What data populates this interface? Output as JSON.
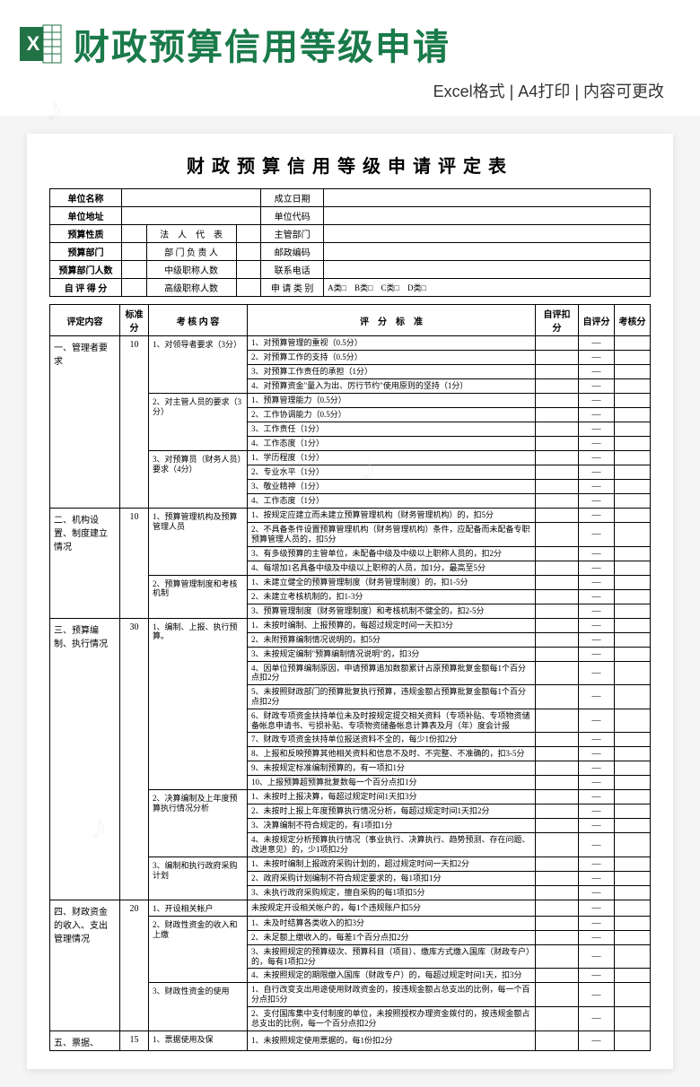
{
  "banner": {
    "title": "财政预算信用等级申请",
    "subtitle": "Excel格式 | A4打印 | 内容可更改",
    "icon_color": "#217346",
    "icon_label": "X"
  },
  "doc": {
    "title": "财政预算信用等级申请评定表"
  },
  "info": {
    "rows": [
      {
        "l1": "单位名称",
        "l2": "",
        "l3": "",
        "r1": "成立日期",
        "r2": ""
      },
      {
        "l1": "单位地址",
        "l2": "",
        "l3": "",
        "r1": "单位代码",
        "r2": ""
      },
      {
        "l1": "预算性质",
        "l2": "",
        "l3": "法　人　代　表",
        "r1": "主管部门",
        "r2": ""
      },
      {
        "l1": "预算部门",
        "l2": "",
        "l3": "部 门 负 责 人",
        "r1": "邮政编码",
        "r2": ""
      },
      {
        "l1": "预算部门人数",
        "l2": "",
        "l3": "中级职称人数",
        "r1": "联系电话",
        "r2": ""
      },
      {
        "l1": "自 评 得 分",
        "l2": "",
        "l3": "高级职称人数",
        "r1": "申 请 类 别",
        "r2": "A类□　B类□　C类□　D类□"
      }
    ]
  },
  "headers": {
    "category": "评定内容",
    "score": "标准分",
    "criteria": "考 核 内 容",
    "standard": "评　分　标　准",
    "deduct": "自评扣分",
    "self": "自评分",
    "check": "考核分"
  },
  "sections": [
    {
      "category": "一、管理者要求",
      "score": "10",
      "groups": [
        {
          "criteria": "1、对领导者要求（3分）",
          "items": [
            "1、对预算管理的重视（0.5分）",
            "2、对预算工作的支持（0.5分）",
            "3、对预算工作责任的承担（1分）",
            "4、对预算资金\"量入为出、厉行节约\"使用原则的坚持（1分）"
          ]
        },
        {
          "criteria": "2、对主管人员的要求（3分）",
          "items": [
            "1、预算管理能力（0.5分）",
            "2、工作协调能力（0.5分）",
            "3、工作责任（1分）",
            "4、工作态度（1分）"
          ]
        },
        {
          "criteria": "3、对预算员（财务人员）要求（4分）",
          "items": [
            "1、学历程度（1分）",
            "2、专业水平（1分）",
            "3、敬业精神（1分）",
            "4、工作态度（1分）"
          ]
        }
      ]
    },
    {
      "category": "二、机构设置、制度建立情况",
      "score": "10",
      "groups": [
        {
          "criteria": "1、预算管理机构及预算管理人员",
          "items": [
            "1、按规定应建立而未建立预算管理机构（财务管理机构）的，扣5分",
            "2、不具备条件设置预算管理机构（财务管理机构）条件，应配备而未配备专职预算管理人员的，扣5分",
            "3、有多级预算的主管单位，未配备中级及中级以上职称人员的，扣2分",
            "4、每增加1名具备中级及中级以上职称的人员，加1分，最高至5分"
          ]
        },
        {
          "criteria": "2、预算管理制度和考核机制",
          "items": [
            "1、未建立健全的预算管理制度（财务管理制度）的，扣1-5分",
            "2、未建立考核机制的，扣1-3分",
            "3、预算管理制度（财务管理制度）和考核机制不健全的，扣2-5分"
          ]
        }
      ]
    },
    {
      "category": "三、预算编制、执行情况",
      "score": "30",
      "groups": [
        {
          "criteria": "1、编制、上报、执行预算。",
          "items": [
            "1、未按时编制、上报预算的，每超过规定时间一天扣3分",
            "2、未附预算编制情况说明的，扣5分",
            "3、未按规定编制\"预算编制情况说明\"的，扣3分",
            "4、因单位预算编制原因，申请预算追加数额累计占原预算批复金额每1个百分点扣2分",
            "5、未按照财政部门的预算批复执行预算，违规金额占预算批复金额每1个百分点扣2分",
            "6、财政专项资金扶持单位未及时按规定提交相关资料（专项补贴、专项物资储备帐息申请书、亏损补贴、专项物资储备帐息计算表及月（年）度会计报",
            "7、财政专项资金扶持单位报送资料不全的，每少1份扣2分",
            "8、上报和反映预算其他相关资料和信息不及时、不完整、不准确的，扣3-5分",
            "9、未按规定标准编制预算的，有一项扣1分",
            "10、上报预算超预算批复数每一个百分点扣1分"
          ]
        },
        {
          "criteria": "2、决算编制及上年度预算执行情况分析",
          "items": [
            "1、未按时上报决算，每超过规定时间1天扣3分",
            "2、未按时上报上年度预算执行情况分析，每超过规定时间1天扣2分",
            "3、决算编制不符合规定的，有1项扣1分",
            "4、未按规定分析预算执行情况（事业执行、决算执行、趋势预测、存在问题、改进意见）的，少1项扣2分"
          ]
        },
        {
          "criteria": "3、编制和执行政府采购计划",
          "items": [
            "1、未按时编制上报政府采购计划的，超过规定时间一天扣2分",
            "2、政府采购计划编制不符合规定要求的，每1项扣1分",
            "3、未执行政府采购规定，擅自采购的每1项扣5分"
          ]
        }
      ]
    },
    {
      "category": "四、财政资金的收入、支出管理情况",
      "score": "20",
      "groups": [
        {
          "criteria": "1、开设相关帐户",
          "items": [
            "未按规定开设相关帐户的，每1个违规账户扣5分"
          ]
        },
        {
          "criteria": "2、财政性资金的收入和上缴",
          "items": [
            "1、未及时结算各类收入的扣3分",
            "2、未足额上缴收入的，每差1个百分点扣2分",
            "3、未按照规定的预算级次、预算科目（项目）、缴库方式缴入国库（财政专户）的，每有1项扣2分",
            "4、未按照规定的期限缴入国库（财政专户）的，每超过规定时间1天，扣3分"
          ]
        },
        {
          "criteria": "3、财政性资金的使用",
          "items": [
            "1、自行改变支出用途使用财政资金的，按违规金额占总支出的比例，每一个百分点扣5分",
            "2、支付国库集中支付制度的单位，未按照授权办理资金拨付的，按违规金额占总支出的比例，每一个百分点扣2分"
          ]
        }
      ]
    },
    {
      "category": "五、票据、",
      "score": "15",
      "groups": [
        {
          "criteria": "1、票据使用及保",
          "items": [
            "1、未按照规定使用票据的，每1份扣2分"
          ]
        }
      ]
    }
  ],
  "dash": "—"
}
